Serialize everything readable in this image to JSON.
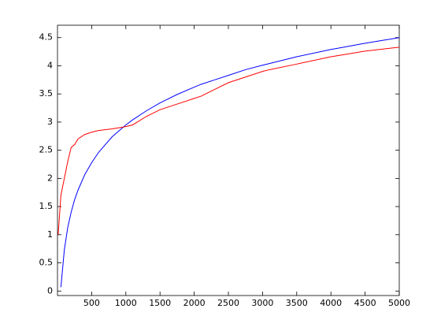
{
  "chart_data": {
    "type": "line",
    "x": [
      10,
      50,
      100,
      150,
      200,
      250,
      300,
      400,
      500,
      600,
      800,
      1000,
      1100,
      1300,
      1500,
      1750,
      2000,
      2100,
      2300,
      2500,
      2750,
      3000,
      3100,
      3500,
      4000,
      4100,
      4500,
      5000
    ],
    "series": [
      {
        "color": "#0000ff",
        "values": [
          null,
          0.07,
          0.73,
          1.13,
          1.4,
          1.62,
          1.79,
          2.07,
          2.28,
          2.46,
          2.74,
          2.95,
          3.04,
          3.2,
          3.34,
          3.49,
          3.62,
          3.67,
          3.75,
          3.83,
          3.93,
          4.01,
          4.04,
          4.16,
          4.29,
          4.31,
          4.4,
          4.5
        ]
      },
      {
        "color": "#ff0000",
        "values": [
          1.0,
          1.7,
          2.0,
          2.3,
          2.55,
          2.6,
          2.7,
          2.78,
          2.82,
          2.85,
          2.88,
          2.92,
          2.95,
          3.1,
          3.22,
          3.32,
          3.42,
          3.46,
          3.58,
          3.7,
          3.8,
          3.9,
          3.93,
          4.03,
          4.16,
          4.18,
          4.26,
          4.33
        ]
      }
    ],
    "xlim": [
      0,
      5000
    ],
    "xticks": [
      500,
      1000,
      1500,
      2000,
      2500,
      3000,
      3500,
      4000,
      4500,
      5000
    ],
    "ylim": [
      -0.08,
      4.72
    ],
    "yticks": [
      0,
      0.5,
      1,
      1.5,
      2,
      2.5,
      3,
      3.5,
      4,
      4.5
    ],
    "grid": false
  }
}
